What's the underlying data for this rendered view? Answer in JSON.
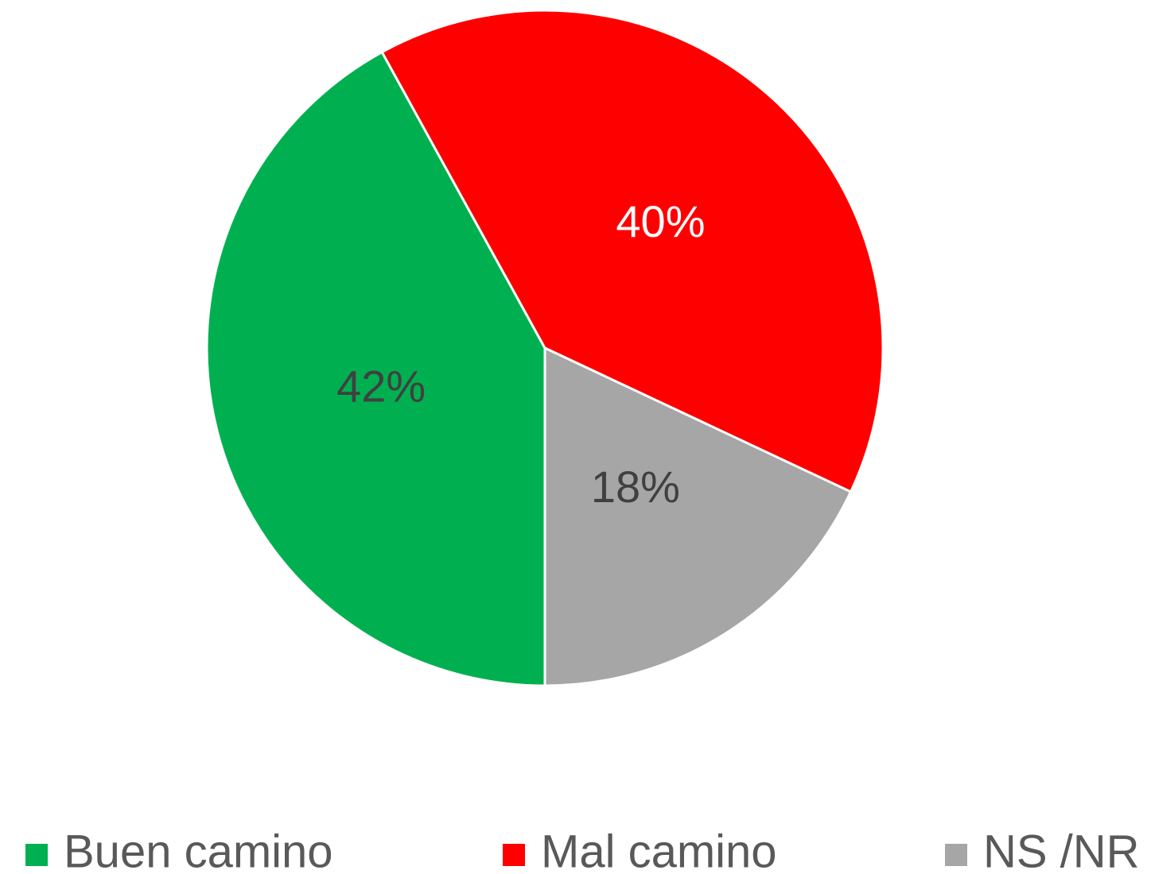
{
  "chart_data": {
    "type": "pie",
    "categories": [
      "Buen camino",
      "Mal camino",
      "NS /NR"
    ],
    "values": [
      42,
      40,
      18
    ],
    "value_labels": [
      "42%",
      "40%",
      "18%"
    ],
    "colors": [
      "#00b050",
      "#ff0000",
      "#a6a6a6"
    ],
    "label_colors": [
      "#404040",
      "#ffffff",
      "#404040"
    ],
    "legend": "bottom"
  }
}
